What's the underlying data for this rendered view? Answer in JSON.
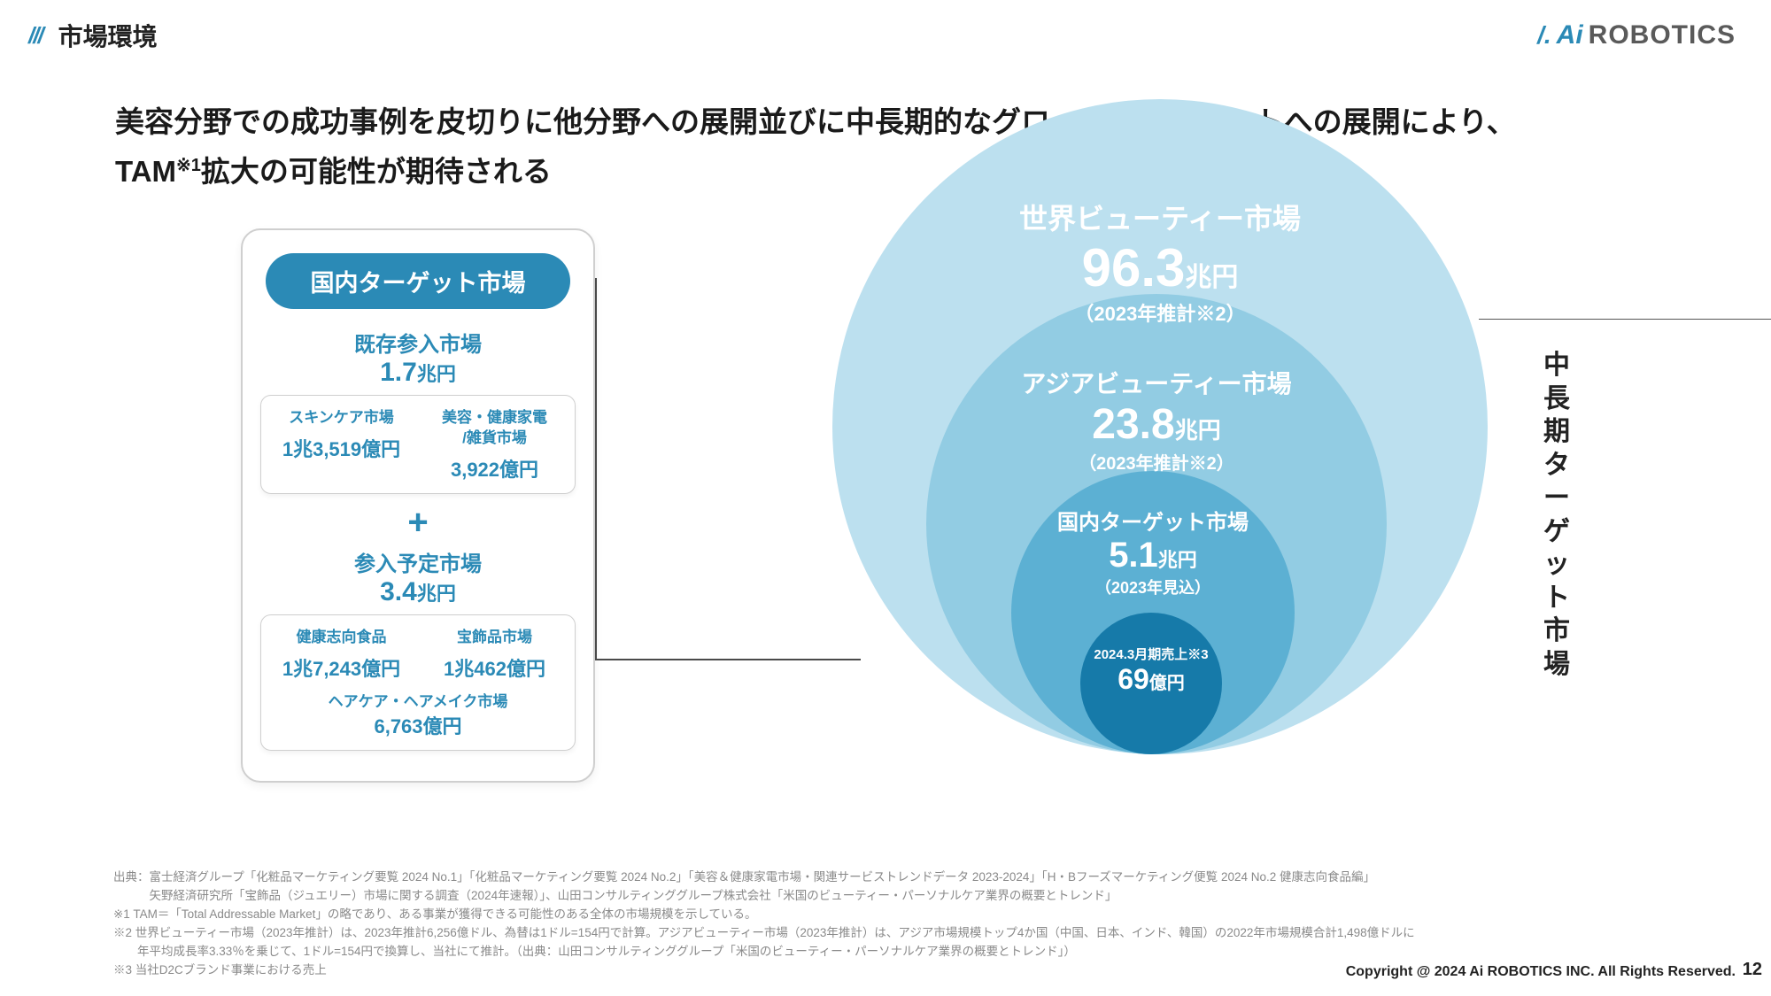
{
  "header": {
    "section_title": "市場環境",
    "logo_brand1": "Ai",
    "logo_brand2": "ROBOTICS"
  },
  "headline": {
    "line1": "美容分野での成功事例を皮切りに他分野への展開並びに中長期的なグローバルマーケットへの展開により、",
    "line2_pre": "TAM",
    "line2_sup": "※1",
    "line2_post": "拡大の可能性が期待される"
  },
  "left_panel": {
    "pill": "国内ターゲット市場",
    "section1": {
      "title": "既存参入市場",
      "value": "1.7",
      "unit": "兆円",
      "cols": [
        {
          "label": "スキンケア市場",
          "value": "1兆3,519億円"
        },
        {
          "label": "美容・健康家電\n/雑貨市場",
          "value": "3,922億円"
        }
      ]
    },
    "plus": "+",
    "section2": {
      "title": "参入予定市場",
      "value": "3.4",
      "unit": "兆円",
      "cols": [
        {
          "label": "健康志向食品",
          "value": "1兆7,243億円"
        },
        {
          "label": "宝飾品市場",
          "value": "1兆462億円"
        }
      ],
      "extra": {
        "label": "ヘアケア・ヘアメイク市場",
        "value": "6,763億円"
      }
    }
  },
  "circles": {
    "colors": {
      "c1": "#bce0ef",
      "c2": "#92cce3",
      "c3": "#5cb0d3",
      "c4": "#167aa9"
    },
    "c1": {
      "title": "世界ビューティー市場",
      "value": "96.3",
      "unit": "兆円",
      "note": "（2023年推計※2）",
      "title_fs": 32,
      "val_fs": 60,
      "unit_fs": 30,
      "note_fs": 22,
      "color": "#ffffff"
    },
    "c2": {
      "title": "アジアビューティー市場",
      "value": "23.8",
      "unit": "兆円",
      "note": "（2023年推計※2）",
      "title_fs": 28,
      "val_fs": 48,
      "unit_fs": 26,
      "note_fs": 20,
      "color": "#ffffff"
    },
    "c3": {
      "title": "国内ターゲット市場",
      "value": "5.1",
      "unit": "兆円",
      "note": "（2023年見込）",
      "title_fs": 24,
      "val_fs": 40,
      "unit_fs": 22,
      "note_fs": 18,
      "color": "#ffffff"
    },
    "c4": {
      "title": "2024.3月期売上※3",
      "value": "69",
      "unit": "億円",
      "title_fs": 15,
      "val_fs": 32,
      "unit_fs": 20,
      "color": "#ffffff"
    }
  },
  "vertical_label": "中長期ターゲット市場",
  "footer": {
    "lines": [
      "出典：富士経済グループ「化粧品マーケティング要覧 2024 No.1」「化粧品マーケティング要覧 2024 No.2」「美容＆健康家電市場・関連サービストレンドデータ 2023-2024」「H・Bフーズマーケティング便覧 2024 No.2 健康志向食品編」",
      "　　　矢野経済研究所「宝飾品（ジュエリー）市場に関する調査（2024年速報）」、山田コンサルティンググループ株式会社「米国のビューティー・パーソナルケア業界の概要とトレンド」",
      "※1 TAM＝「Total Addressable Market」の略であり、ある事業が獲得できる可能性のある全体の市場規模を示している。",
      "※2 世界ビューティー市場（2023年推計）は、2023年推計6,256億ドル、為替は1ドル=154円で計算。アジアビューティー市場（2023年推計）は、アジア市場規模トップ4か国（中国、日本、インド、韓国）の2022年市場規模合計1,498億ドルに",
      "　　年平均成長率3.33％を乗じて、1ドル=154円で換算し、当社にて推計。（出典：山田コンサルティンググループ「米国のビューティー・パーソナルケア業界の概要とトレンド」）",
      "※3 当社D2Cブランド事業における売上"
    ],
    "copyright": "Copyright @ 2024 Ai ROBOTICS INC. All Rights Reserved.",
    "page": "12"
  }
}
